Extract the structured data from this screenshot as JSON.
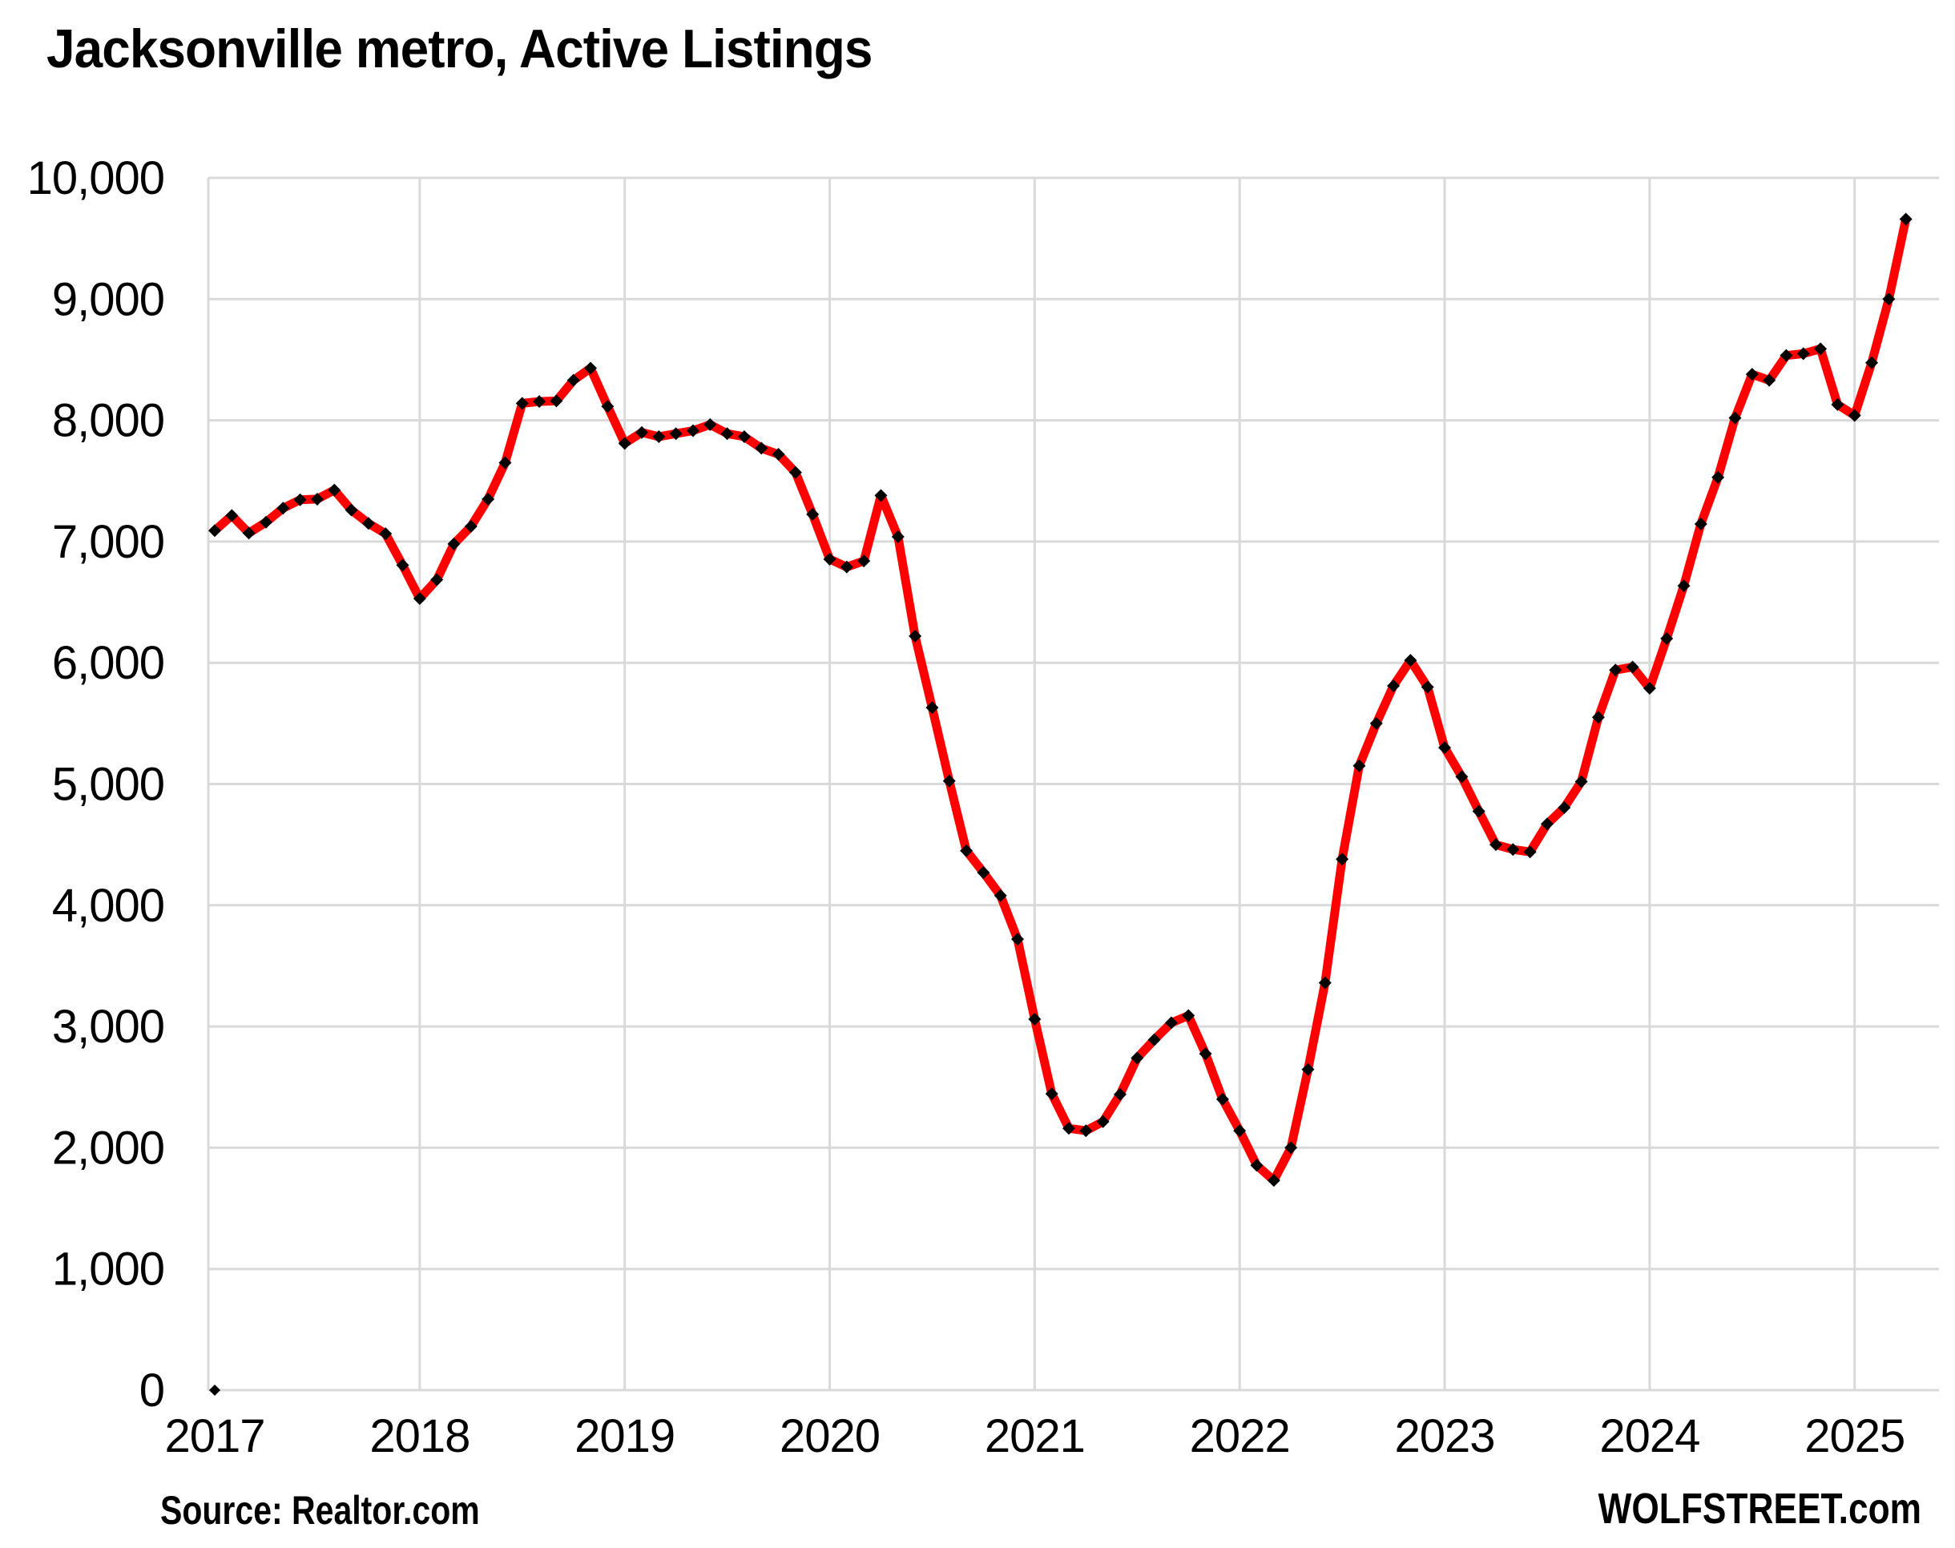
{
  "header": {
    "title": "Jacksonville metro, Active Listings"
  },
  "footer": {
    "source": "Source: Realtor.com",
    "watermark": "WOLFSTREET.com"
  },
  "chart_data": {
    "type": "line",
    "title": "Jacksonville metro, Active Listings",
    "xlabel": "",
    "ylabel": "",
    "x_range": [
      "2017-01",
      "2025-04"
    ],
    "x_freq": "monthly",
    "ylim": [
      0,
      10000
    ],
    "grid": true,
    "legend_position": "none",
    "line_color": "#FF0000",
    "marker": "diamond",
    "marker_color": "#000000",
    "gridline_color": "#D9D9D9",
    "background_color": "#FFFFFF",
    "y_ticks": [
      {
        "value": 0,
        "label": "0"
      },
      {
        "value": 1000,
        "label": "1,000"
      },
      {
        "value": 2000,
        "label": "2,000"
      },
      {
        "value": 3000,
        "label": "3,000"
      },
      {
        "value": 4000,
        "label": "4,000"
      },
      {
        "value": 5000,
        "label": "5,000"
      },
      {
        "value": 6000,
        "label": "6,000"
      },
      {
        "value": 7000,
        "label": "7,000"
      },
      {
        "value": 8000,
        "label": "8,000"
      },
      {
        "value": 9000,
        "label": "9,000"
      },
      {
        "value": 10000,
        "label": "10,000"
      }
    ],
    "x_ticks": [
      {
        "month_index": 0,
        "label": "2017"
      },
      {
        "month_index": 12,
        "label": "2018"
      },
      {
        "month_index": 24,
        "label": "2019"
      },
      {
        "month_index": 36,
        "label": "2020"
      },
      {
        "month_index": 48,
        "label": "2021"
      },
      {
        "month_index": 60,
        "label": "2022"
      },
      {
        "month_index": 72,
        "label": "2023"
      },
      {
        "month_index": 84,
        "label": "2024"
      },
      {
        "month_index": 96,
        "label": "2025"
      }
    ],
    "months": [
      "2017-01",
      "2017-02",
      "2017-03",
      "2017-04",
      "2017-05",
      "2017-06",
      "2017-07",
      "2017-08",
      "2017-09",
      "2017-10",
      "2017-11",
      "2017-12",
      "2018-01",
      "2018-02",
      "2018-03",
      "2018-04",
      "2018-05",
      "2018-06",
      "2018-07",
      "2018-08",
      "2018-09",
      "2018-10",
      "2018-11",
      "2018-12",
      "2019-01",
      "2019-02",
      "2019-03",
      "2019-04",
      "2019-05",
      "2019-06",
      "2019-07",
      "2019-08",
      "2019-09",
      "2019-10",
      "2019-11",
      "2019-12",
      "2020-01",
      "2020-02",
      "2020-03",
      "2020-04",
      "2020-05",
      "2020-06",
      "2020-07",
      "2020-08",
      "2020-09",
      "2020-10",
      "2020-11",
      "2020-12",
      "2021-01",
      "2021-02",
      "2021-03",
      "2021-04",
      "2021-05",
      "2021-06",
      "2021-07",
      "2021-08",
      "2021-09",
      "2021-10",
      "2021-11",
      "2021-12",
      "2022-01",
      "2022-02",
      "2022-03",
      "2022-04",
      "2022-05",
      "2022-06",
      "2022-07",
      "2022-08",
      "2022-09",
      "2022-10",
      "2022-11",
      "2022-12",
      "2023-01",
      "2023-02",
      "2023-03",
      "2023-04",
      "2023-05",
      "2023-06",
      "2023-07",
      "2023-08",
      "2023-09",
      "2023-10",
      "2023-11",
      "2023-12",
      "2024-01",
      "2024-02",
      "2024-03",
      "2024-04",
      "2024-05",
      "2024-06",
      "2024-07",
      "2024-08",
      "2024-09",
      "2024-10",
      "2024-11",
      "2024-12",
      "2025-01",
      "2025-02",
      "2025-03",
      "2025-04"
    ],
    "values": [
      7090,
      7215,
      7070,
      7160,
      7275,
      7345,
      7350,
      7425,
      7260,
      7150,
      7065,
      6805,
      6530,
      6685,
      6980,
      7125,
      7350,
      7650,
      8140,
      8155,
      8160,
      8330,
      8430,
      8115,
      7810,
      7900,
      7865,
      7890,
      7915,
      7965,
      7890,
      7865,
      7770,
      7720,
      7570,
      7225,
      6855,
      6790,
      6840,
      7380,
      7040,
      6220,
      5630,
      5025,
      4450,
      4270,
      4080,
      3720,
      3060,
      2445,
      2160,
      2140,
      2215,
      2440,
      2740,
      2890,
      3030,
      3090,
      2775,
      2400,
      2140,
      1855,
      1730,
      2000,
      2645,
      3360,
      4380,
      5150,
      5500,
      5810,
      6020,
      5800,
      5300,
      5060,
      4775,
      4500,
      4460,
      4440,
      4670,
      4805,
      5020,
      5550,
      5940,
      5965,
      5790,
      6200,
      6635,
      7145,
      7530,
      8020,
      8380,
      8330,
      8535,
      8550,
      8590,
      8130,
      8040,
      8475,
      9000,
      9660
    ],
    "stray_zero_point": {
      "month": "2017-01",
      "value": 0
    }
  }
}
